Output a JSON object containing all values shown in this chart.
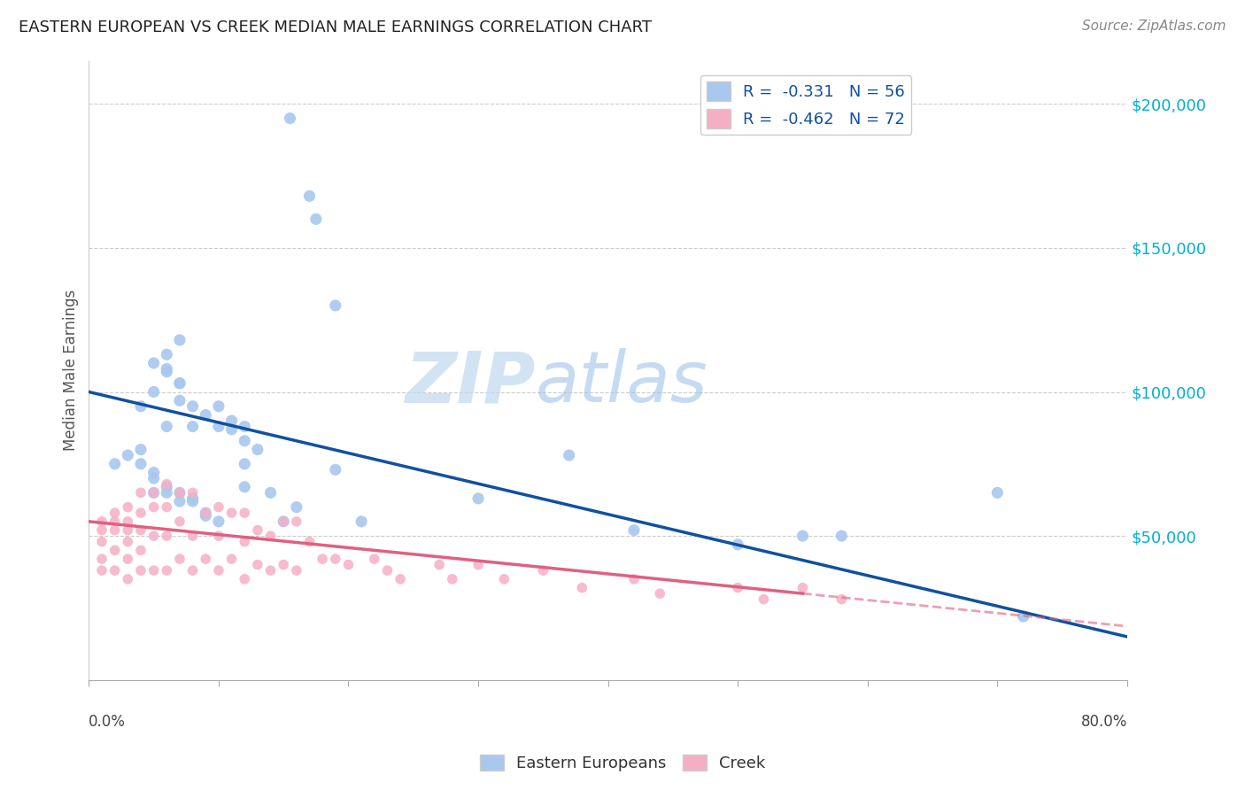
{
  "title": "EASTERN EUROPEAN VS CREEK MEDIAN MALE EARNINGS CORRELATION CHART",
  "source": "Source: ZipAtlas.com",
  "ylabel": "Median Male Earnings",
  "watermark_zip": "ZIP",
  "watermark_atlas": "atlas",
  "xlim": [
    0.0,
    0.8
  ],
  "ylim": [
    0,
    215000
  ],
  "yticks": [
    0,
    50000,
    100000,
    150000,
    200000
  ],
  "ytick_labels": [
    "",
    "$50,000",
    "$100,000",
    "$150,000",
    "$200,000"
  ],
  "xticks": [
    0.0,
    0.1,
    0.2,
    0.3,
    0.4,
    0.5,
    0.6,
    0.7,
    0.8
  ],
  "blue_R": -0.331,
  "blue_N": 56,
  "pink_R": -0.462,
  "pink_N": 72,
  "blue_color": "#a8c8ee",
  "pink_color": "#f5afc5",
  "blue_line_color": "#1050a0",
  "pink_line_color": "#e06080",
  "legend_label_blue": "Eastern Europeans",
  "legend_label_pink": "Creek",
  "blue_scatter_x": [
    0.02,
    0.155,
    0.19,
    0.17,
    0.175,
    0.03,
    0.04,
    0.05,
    0.05,
    0.06,
    0.06,
    0.06,
    0.07,
    0.07,
    0.07,
    0.04,
    0.05,
    0.05,
    0.06,
    0.06,
    0.07,
    0.07,
    0.08,
    0.08,
    0.08,
    0.09,
    0.09,
    0.1,
    0.1,
    0.11,
    0.11,
    0.12,
    0.12,
    0.12,
    0.13,
    0.14,
    0.15,
    0.16,
    0.19,
    0.21,
    0.3,
    0.37,
    0.42,
    0.5,
    0.55,
    0.58,
    0.7,
    0.72,
    0.04,
    0.05,
    0.06,
    0.07,
    0.08,
    0.09,
    0.1,
    0.12
  ],
  "blue_scatter_y": [
    75000,
    195000,
    130000,
    168000,
    160000,
    78000,
    80000,
    72000,
    65000,
    113000,
    107000,
    65000,
    118000,
    103000,
    62000,
    95000,
    100000,
    110000,
    108000,
    88000,
    103000,
    97000,
    95000,
    88000,
    63000,
    92000,
    57000,
    95000,
    88000,
    90000,
    87000,
    88000,
    83000,
    67000,
    80000,
    65000,
    55000,
    60000,
    73000,
    55000,
    63000,
    78000,
    52000,
    47000,
    50000,
    50000,
    65000,
    22000,
    75000,
    70000,
    67000,
    65000,
    62000,
    58000,
    55000,
    75000
  ],
  "pink_scatter_x": [
    0.01,
    0.01,
    0.01,
    0.01,
    0.01,
    0.02,
    0.02,
    0.02,
    0.02,
    0.02,
    0.03,
    0.03,
    0.03,
    0.03,
    0.03,
    0.03,
    0.04,
    0.04,
    0.04,
    0.04,
    0.04,
    0.05,
    0.05,
    0.05,
    0.05,
    0.06,
    0.06,
    0.06,
    0.06,
    0.07,
    0.07,
    0.07,
    0.08,
    0.08,
    0.08,
    0.09,
    0.09,
    0.1,
    0.1,
    0.1,
    0.11,
    0.11,
    0.12,
    0.12,
    0.12,
    0.13,
    0.13,
    0.14,
    0.14,
    0.15,
    0.15,
    0.16,
    0.16,
    0.17,
    0.18,
    0.19,
    0.2,
    0.22,
    0.23,
    0.24,
    0.27,
    0.28,
    0.3,
    0.32,
    0.35,
    0.38,
    0.42,
    0.44,
    0.5,
    0.52,
    0.55,
    0.58
  ],
  "pink_scatter_y": [
    55000,
    52000,
    48000,
    42000,
    38000,
    58000,
    55000,
    52000,
    45000,
    38000,
    60000,
    55000,
    52000,
    48000,
    42000,
    35000,
    65000,
    58000,
    52000,
    45000,
    38000,
    65000,
    60000,
    50000,
    38000,
    68000,
    60000,
    50000,
    38000,
    65000,
    55000,
    42000,
    65000,
    50000,
    38000,
    58000,
    42000,
    60000,
    50000,
    38000,
    58000,
    42000,
    58000,
    48000,
    35000,
    52000,
    40000,
    50000,
    38000,
    55000,
    40000,
    55000,
    38000,
    48000,
    42000,
    42000,
    40000,
    42000,
    38000,
    35000,
    40000,
    35000,
    40000,
    35000,
    38000,
    32000,
    35000,
    30000,
    32000,
    28000,
    32000,
    28000
  ]
}
